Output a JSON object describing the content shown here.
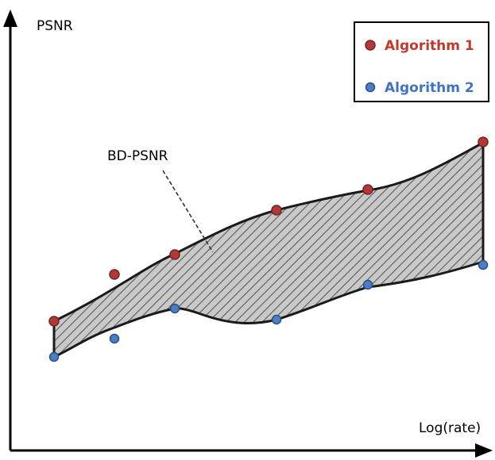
{
  "axes": {
    "y_label": "PSNR",
    "x_label": "Log(rate)"
  },
  "annotation": {
    "label": "BD-PSNR"
  },
  "legend": {
    "placement": "top-right",
    "items": [
      {
        "label": "Algorithm 1",
        "color": "#b03a3a"
      },
      {
        "label": "Algorithm 2",
        "color": "#4a7fc8"
      }
    ]
  },
  "colors": {
    "fill": "#c9c9c9",
    "hatch": "#5a5a5a",
    "curve": "#1a1a1a",
    "axis": "#000000",
    "marker_edge_1": "#7a2020",
    "marker_edge_2": "#2a4f80"
  }
}
